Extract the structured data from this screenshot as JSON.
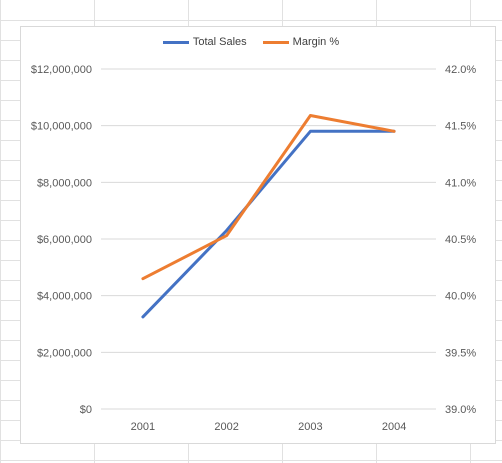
{
  "chart_data": {
    "type": "line",
    "categories": [
      "2001",
      "2002",
      "2003",
      "2004"
    ],
    "series": [
      {
        "name": "Total Sales",
        "axis": "primary",
        "color": "#4472c4",
        "values": [
          3250000,
          6300000,
          9800000,
          9800000
        ]
      },
      {
        "name": "Margin %",
        "axis": "secondary",
        "color": "#ed7d31",
        "values": [
          0.4015,
          0.4053,
          0.4159,
          0.4145
        ]
      }
    ],
    "y_primary": {
      "ylim": [
        0,
        12000000
      ],
      "tick_labels": [
        "$0",
        "$2,000,000",
        "$4,000,000",
        "$6,000,000",
        "$8,000,000",
        "$10,000,000",
        "$12,000,000"
      ]
    },
    "y_secondary": {
      "ylim": [
        0.39,
        0.42
      ],
      "tick_labels": [
        "39.0%",
        "39.5%",
        "40.0%",
        "40.5%",
        "41.0%",
        "41.5%",
        "42.0%"
      ]
    },
    "grid": true,
    "legend_position": "top"
  }
}
